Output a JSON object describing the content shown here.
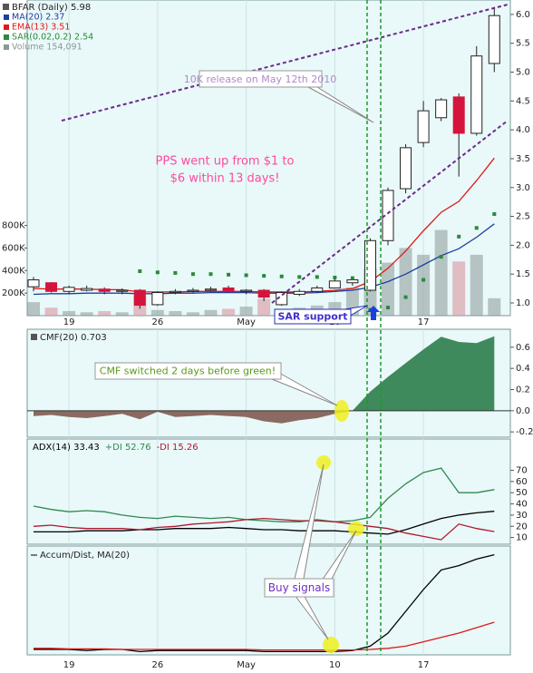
{
  "chart_data": [
    {
      "type": "candlestick",
      "title": "BFAR (Daily) 5.98",
      "categories": [
        null,
        null,
        "19",
        null,
        null,
        null,
        null,
        "26",
        null,
        null,
        null,
        null,
        "May",
        null,
        null,
        null,
        null,
        "10",
        null,
        null,
        null,
        null,
        "17",
        null,
        null,
        null,
        null
      ],
      "open": [
        1.28,
        1.35,
        1.2,
        1.22,
        1.24,
        1.2,
        1.22,
        0.97,
        1.18,
        1.2,
        1.22,
        1.26,
        1.2,
        1.22,
        0.97,
        1.15,
        1.2,
        1.26,
        1.35,
        1.22,
        2.08,
        2.98,
        3.78,
        4.21,
        4.57,
        3.94,
        5.15
      ],
      "high": [
        1.45,
        1.36,
        1.3,
        1.3,
        1.27,
        1.25,
        1.24,
        1.2,
        1.24,
        1.26,
        1.28,
        1.3,
        1.24,
        1.24,
        1.2,
        1.24,
        1.3,
        1.42,
        1.42,
        2.12,
        3.0,
        3.75,
        4.5,
        4.55,
        4.63,
        5.45,
        6.13
      ],
      "low": [
        1.2,
        1.18,
        1.15,
        1.2,
        1.15,
        1.15,
        0.9,
        0.95,
        1.15,
        1.18,
        1.2,
        1.18,
        1.15,
        1.03,
        0.95,
        1.12,
        1.18,
        1.25,
        1.3,
        1.2,
        2.0,
        2.9,
        3.7,
        4.15,
        3.19,
        3.9,
        5.0
      ],
      "close": [
        1.4,
        1.2,
        1.27,
        1.25,
        1.2,
        1.22,
        0.96,
        1.18,
        1.2,
        1.22,
        1.24,
        1.2,
        1.22,
        1.1,
        1.18,
        1.2,
        1.26,
        1.38,
        1.4,
        2.08,
        2.95,
        3.69,
        4.33,
        4.52,
        3.94,
        5.28,
        5.98
      ],
      "up_color": "#ffffff",
      "down_color": "#d4143c",
      "series": [
        {
          "name": "MA(20) 2.37",
          "color": "#1c3fa0",
          "style": "line",
          "values": [
            1.15,
            1.16,
            1.16,
            1.17,
            1.17,
            1.17,
            1.16,
            1.16,
            1.17,
            1.17,
            1.18,
            1.18,
            1.18,
            1.17,
            1.17,
            1.17,
            1.18,
            1.2,
            1.22,
            1.27,
            1.37,
            1.5,
            1.66,
            1.82,
            1.94,
            2.14,
            2.37
          ]
        },
        {
          "name": "EMA(13) 3.51",
          "color": "#e01818",
          "style": "line",
          "values": [
            1.25,
            1.24,
            1.24,
            1.24,
            1.23,
            1.23,
            1.19,
            1.19,
            1.19,
            1.2,
            1.2,
            1.2,
            1.2,
            1.19,
            1.19,
            1.19,
            1.2,
            1.22,
            1.25,
            1.37,
            1.6,
            1.9,
            2.25,
            2.57,
            2.76,
            3.12,
            3.51
          ]
        },
        {
          "name": "SAR(0.02,0.2) 2.54",
          "color": "#2a8a3a",
          "style": "dots",
          "values": [
            null,
            null,
            null,
            null,
            null,
            null,
            1.55,
            1.53,
            1.52,
            1.5,
            1.5,
            1.49,
            1.48,
            1.47,
            1.46,
            1.45,
            1.45,
            1.44,
            1.43,
            0.88,
            0.92,
            1.1,
            1.4,
            1.8,
            2.15,
            2.3,
            2.54
          ]
        },
        {
          "name": "Volume 154,091",
          "color": "#8a9898",
          "style": "bar",
          "axis": "y2",
          "values": [
            120000,
            70000,
            40000,
            30000,
            40000,
            30000,
            180000,
            50000,
            40000,
            30000,
            50000,
            60000,
            80000,
            150000,
            60000,
            70000,
            90000,
            120000,
            250000,
            420000,
            470000,
            600000,
            540000,
            760000,
            480000,
            540000,
            154091
          ]
        }
      ],
      "ylim": [
        0.78,
        6.25
      ],
      "yticks": [
        {
          "value": 1,
          "label": "1.0"
        },
        {
          "value": 1.5,
          "label": "1.5"
        },
        {
          "value": 2,
          "label": "2.0"
        },
        {
          "value": 2.5,
          "label": "2.5"
        },
        {
          "value": 3,
          "label": "3.0"
        },
        {
          "value": 3.5,
          "label": "3.5"
        },
        {
          "value": 4,
          "label": "4.0"
        },
        {
          "value": 4.5,
          "label": "4.5"
        },
        {
          "value": 5,
          "label": "5.0"
        },
        {
          "value": 5.5,
          "label": "5.5"
        },
        {
          "value": 6,
          "label": "6.0"
        }
      ],
      "y2lim": [
        0,
        2800000
      ],
      "y2ticks": [
        {
          "value": 200000,
          "label": "200K"
        },
        {
          "value": 400000,
          "label": "400K"
        },
        {
          "value": 600000,
          "label": "600K"
        },
        {
          "value": 800000,
          "label": "800K"
        }
      ],
      "annotations": [
        "10K release on May 12th 2010",
        "PPS went up from $1 to",
        "$6 within 13 days!",
        "SAR support"
      ]
    },
    {
      "type": "area",
      "title": "CMF(20) 0.703",
      "series": [
        {
          "color": "#3f8a5c",
          "negative_color": "#8a6a62",
          "values": [
            -0.05,
            -0.04,
            -0.06,
            -0.07,
            -0.05,
            -0.03,
            -0.08,
            -0.01,
            -0.06,
            -0.05,
            -0.04,
            -0.05,
            -0.06,
            -0.1,
            -0.12,
            -0.09,
            -0.07,
            -0.03,
            0.0,
            0.18,
            0.32,
            0.45,
            0.58,
            0.7,
            0.65,
            0.64,
            0.703
          ]
        }
      ],
      "ylim": [
        -0.25,
        0.77
      ],
      "yticks": [
        -0.2,
        {
          "value": 0,
          "label": "0.0"
        },
        0.2,
        0.4,
        0.6
      ],
      "annotations": [
        "CMF switched 2 days before green!"
      ]
    },
    {
      "type": "line",
      "series": [
        {
          "name": "ADX(14) 33.43",
          "color": "#000000",
          "values": [
            15,
            15,
            15,
            16,
            16,
            16,
            17,
            17,
            18,
            18,
            18,
            19,
            18,
            17,
            17,
            16,
            16,
            16,
            15,
            14,
            13,
            17,
            22,
            27,
            30,
            32,
            33.43
          ]
        },
        {
          "name": "+DI 52.76",
          "color": "#2e8a4e",
          "values": [
            38,
            35,
            33,
            34,
            33,
            30,
            28,
            27,
            29,
            28,
            27,
            28,
            26,
            25,
            24,
            24,
            26,
            24,
            25,
            28,
            45,
            58,
            68,
            72,
            50,
            50,
            52.76
          ]
        },
        {
          "name": "-DI 15.26",
          "color": "#b01830",
          "values": [
            20,
            21,
            19,
            18,
            18,
            18,
            17,
            19,
            20,
            22,
            23,
            24,
            26,
            27,
            26,
            25,
            25,
            24,
            22,
            20,
            18,
            14,
            11,
            8,
            22,
            18,
            15.26
          ]
        }
      ],
      "ylim": [
        4,
        98
      ],
      "yticks": [
        10,
        20,
        30,
        40,
        50,
        60,
        70
      ]
    },
    {
      "type": "line",
      "title": "Accum/Dist, MA(20)",
      "series": [
        {
          "color": "#000000",
          "values": [
            5,
            5,
            5,
            4,
            5,
            5,
            3,
            4,
            4,
            4,
            4,
            4,
            4,
            3,
            3,
            3,
            3,
            3,
            4,
            8,
            20,
            40,
            60,
            78,
            82,
            88,
            92
          ]
        },
        {
          "color": "#e01818",
          "values": [
            6,
            6,
            5.5,
            5.5,
            5.5,
            5,
            5,
            5,
            5,
            5,
            5,
            5,
            5,
            4.5,
            4.5,
            4.5,
            4.5,
            4.5,
            4.5,
            5,
            6,
            8,
            12,
            16,
            20,
            25,
            30
          ]
        }
      ],
      "ylim": [
        0,
        100
      ],
      "yticks": [],
      "annotations": [
        "Buy signals"
      ]
    }
  ]
}
